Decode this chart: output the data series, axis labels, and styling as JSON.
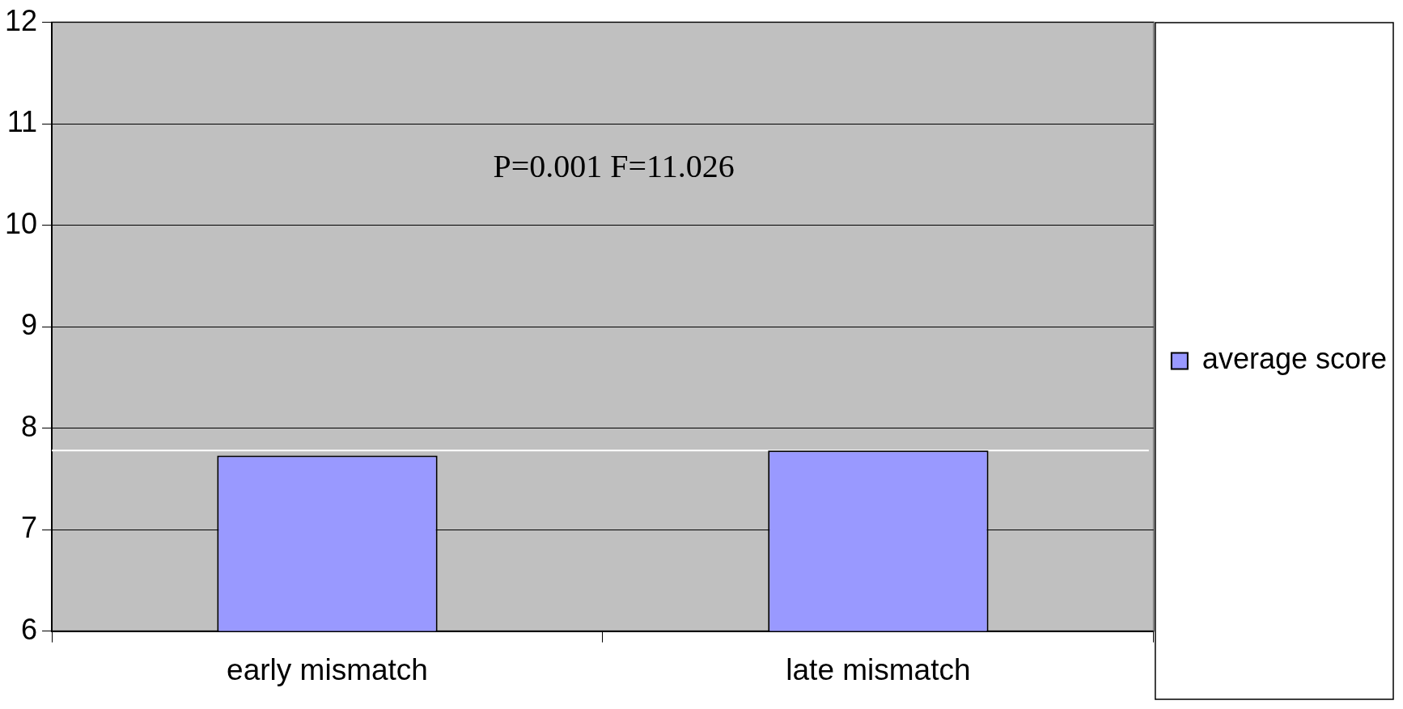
{
  "chart_data": {
    "type": "bar",
    "categories": [
      "early mismatch",
      "late mismatch"
    ],
    "series": [
      {
        "name": "average score",
        "color": "#9999ff",
        "values": [
          7.73,
          7.78
        ]
      }
    ],
    "ylim": [
      6,
      12
    ],
    "yticks": [
      6,
      7,
      8,
      9,
      10,
      11,
      12
    ],
    "grid": "y",
    "legend": "right",
    "ref_lines": [
      {
        "axis": "y",
        "value": 7.78,
        "color": "#ffffff"
      }
    ],
    "annotations": [
      "P=0.001 F=11.026"
    ]
  }
}
